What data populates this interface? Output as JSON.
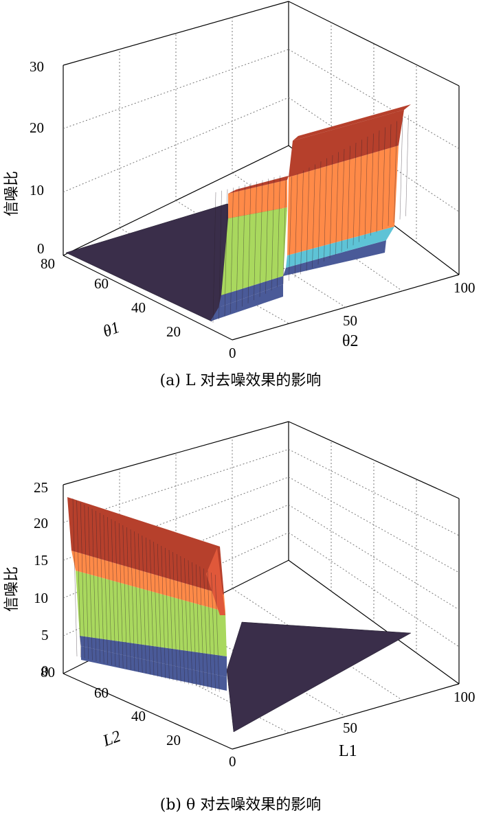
{
  "chart_data": [
    {
      "type": "surface",
      "caption": "(a) L 对去噪效果的影响",
      "zlabel": "信噪比",
      "xlabel": "θ2",
      "ylabel": "θ1",
      "xlim": [
        0,
        100
      ],
      "ylim": [
        0,
        80
      ],
      "zlim": [
        0,
        30
      ],
      "xticks": [
        "0",
        "50",
        "100"
      ],
      "yticks": [
        "20",
        "40",
        "60",
        "80"
      ],
      "zticks": [
        "0",
        "10",
        "20",
        "30"
      ],
      "grid": true,
      "colormap": [
        "#3a2e4a",
        "#4a5a98",
        "#5ec3d6",
        "#a9d85e",
        "#ff8a48",
        "#b6402c"
      ],
      "surface": {
        "description_levels": "step surface: near 0 for θ2 < 24; ~9.5 for 24 ≤ θ2 < 58; ~21 for θ2 ≥ 58",
        "profile": [
          {
            "x": 0,
            "z": 0
          },
          {
            "x": 23,
            "z": 0
          },
          {
            "x": 24,
            "z": 8.8
          },
          {
            "x": 57,
            "z": 9.8
          },
          {
            "x": 58,
            "z": 20.5
          },
          {
            "x": 100,
            "z": 21.5
          }
        ]
      }
    },
    {
      "type": "surface",
      "caption": "(b) θ 对去噪效果的影响",
      "zlabel": "信噪比",
      "xlabel": "L1",
      "ylabel": "L2",
      "xlim": [
        0,
        100
      ],
      "ylim": [
        0,
        80
      ],
      "zlim": [
        0,
        25
      ],
      "xticks": [
        "0",
        "50",
        "100"
      ],
      "yticks": [
        "20",
        "40",
        "60",
        "80"
      ],
      "zticks": [
        "0",
        "5",
        "10",
        "15",
        "20",
        "25"
      ],
      "grid": true,
      "colormap": [
        "#3a2e4a",
        "#4a5a98",
        "#5ec3d6",
        "#a9d85e",
        "#ff8a48",
        "#b6402c"
      ],
      "surface": {
        "description_levels": "high plateau ~22 for small L1, dropping to ~0 around L1 ≈ 4",
        "profile": [
          {
            "y": 80,
            "z": 23.5
          },
          {
            "y": 40,
            "z": 21
          },
          {
            "y": 5,
            "z": 17
          },
          {
            "y": 0,
            "z": 0
          }
        ]
      }
    }
  ]
}
